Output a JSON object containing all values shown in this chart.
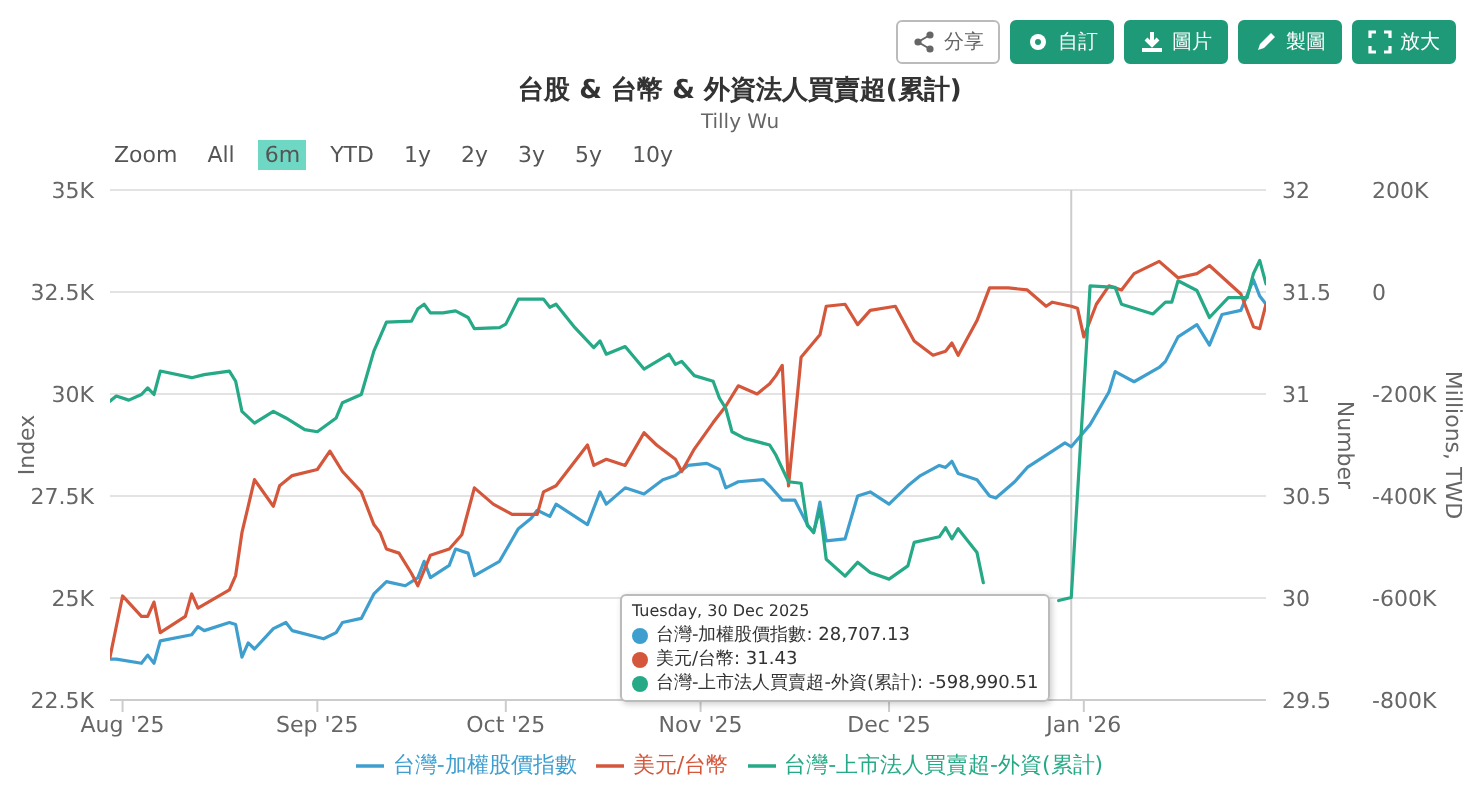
{
  "chart_data": {
    "type": "line",
    "title": "台股 & 台幣 & 外資法人買賣超(累計)",
    "subtitle": "Tilly Wu",
    "ylabel": "Index",
    "y2label": "Number",
    "y3label": "Millions, TWD",
    "annotations": [
      "分享",
      "自訂",
      "圖片",
      "製圖",
      "放大",
      "Zoom",
      "All",
      "6m",
      "YTD",
      "1y",
      "2y",
      "3y",
      "5y",
      "10y",
      "Tuesday, 30 Dec 2025",
      "台灣-加權股價指數: 28,707.13",
      "美元/台幣: 31.43",
      "台灣-上市法人買賣超-外資(累計): -598,990.51"
    ],
    "xlim": [
      "2025-07-30",
      "2026-01-30"
    ],
    "xticks": [
      {
        "value": "2025-08-01",
        "label": "Aug '25"
      },
      {
        "value": "2025-09-01",
        "label": "Sep '25"
      },
      {
        "value": "2025-10-01",
        "label": "Oct '25"
      },
      {
        "value": "2025-11-01",
        "label": "Nov '25"
      },
      {
        "value": "2025-12-01",
        "label": "Dec '25"
      },
      {
        "value": "2026-01-01",
        "label": "Jan '26"
      }
    ],
    "ylim": [
      22500,
      35000
    ],
    "yticks": [
      {
        "value": 22500,
        "label": "22.5K"
      },
      {
        "value": 25000,
        "label": "25K"
      },
      {
        "value": 27500,
        "label": "27.5K"
      },
      {
        "value": 30000,
        "label": "30K"
      },
      {
        "value": 32500,
        "label": "32.5K"
      },
      {
        "value": 35000,
        "label": "35K"
      }
    ],
    "y2lim": [
      29.5,
      32
    ],
    "y2ticks": [
      29.5,
      30,
      30.5,
      31,
      31.5,
      32
    ],
    "y3lim": [
      -800000,
      200000
    ],
    "y3ticks": [
      {
        "value": -800000,
        "label": "-800K"
      },
      {
        "value": -600000,
        "label": "-600K"
      },
      {
        "value": -400000,
        "label": "-400K"
      },
      {
        "value": -200000,
        "label": "-200K"
      },
      {
        "value": 0,
        "label": "0"
      },
      {
        "value": 200000,
        "label": "200K"
      }
    ],
    "ref_lines": [
      {
        "axis": "x",
        "value": "2025-12-30",
        "label": null,
        "color": "#cccccc"
      }
    ],
    "grid": "y",
    "legend": "bottom",
    "marker": "none",
    "series": [
      {
        "name": "台灣-加權股價指數",
        "color": "#3e9fcf",
        "x": [
          "2025-07-30",
          "2025-07-31",
          "2025-08-04",
          "2025-08-05",
          "2025-08-06",
          "2025-08-07",
          "2025-08-12",
          "2025-08-13",
          "2025-08-14",
          "2025-08-18",
          "2025-08-19",
          "2025-08-20",
          "2025-08-21",
          "2025-08-22",
          "2025-08-25",
          "2025-08-27",
          "2025-08-28",
          "2025-09-02",
          "2025-09-04",
          "2025-09-05",
          "2025-09-08",
          "2025-09-10",
          "2025-09-12",
          "2025-09-15",
          "2025-09-17",
          "2025-09-18",
          "2025-09-19",
          "2025-09-22",
          "2025-09-23",
          "2025-09-25",
          "2025-09-26",
          "2025-09-30",
          "2025-10-03",
          "2025-10-05",
          "2025-10-06",
          "2025-10-08",
          "2025-10-09",
          "2025-10-14",
          "2025-10-16",
          "2025-10-17",
          "2025-10-20",
          "2025-10-23",
          "2025-10-26",
          "2025-10-28",
          "2025-10-30",
          "2025-11-02",
          "2025-11-04",
          "2025-11-05",
          "2025-11-07",
          "2025-11-11",
          "2025-11-12",
          "2025-11-14",
          "2025-11-16",
          "2025-11-18",
          "2025-11-19",
          "2025-11-20",
          "2025-11-21",
          "2025-11-24",
          "2025-11-26",
          "2025-11-28",
          "2025-12-01",
          "2025-12-04",
          "2025-12-06",
          "2025-12-09",
          "2025-12-10",
          "2025-12-11",
          "2025-12-12",
          "2025-12-15",
          "2025-12-17",
          "2025-12-18",
          "2025-12-21",
          "2025-12-23",
          "2025-12-27",
          "2025-12-29",
          "2025-12-30",
          "2026-01-02",
          "2026-01-05",
          "2026-01-06",
          "2026-01-09",
          "2026-01-13",
          "2026-01-14",
          "2026-01-16",
          "2026-01-19",
          "2026-01-21",
          "2026-01-23",
          "2026-01-26",
          "2026-01-28",
          "2026-01-29",
          "2026-01-30"
        ],
        "values": [
          23500,
          23500,
          23400,
          23600,
          23400,
          23950,
          24100,
          24300,
          24200,
          24400,
          24350,
          23550,
          23900,
          23750,
          24250,
          24400,
          24200,
          24000,
          24150,
          24400,
          24500,
          25100,
          25400,
          25300,
          25500,
          25900,
          25500,
          25800,
          26200,
          26100,
          25550,
          25900,
          26700,
          26950,
          27150,
          27000,
          27300,
          26800,
          27600,
          27300,
          27700,
          27550,
          27900,
          28000,
          28250,
          28300,
          28150,
          27700,
          27850,
          27900,
          27750,
          27400,
          27400,
          26800,
          26600,
          27350,
          26400,
          26450,
          27500,
          27600,
          27300,
          27750,
          28000,
          28250,
          28200,
          28350,
          28050,
          27900,
          27500,
          27450,
          27850,
          28200,
          28600,
          28800,
          28707.13,
          29250,
          30050,
          30550,
          30300,
          30650,
          30800,
          31400,
          31700,
          31200,
          31950,
          32050,
          32800,
          32400,
          32200
        ]
      },
      {
        "name": "美元/台幣",
        "color": "#d5573b",
        "axis": "y2",
        "x": [
          "2025-07-30",
          "2025-08-01",
          "2025-08-04",
          "2025-08-05",
          "2025-08-06",
          "2025-08-07",
          "2025-08-11",
          "2025-08-12",
          "2025-08-13",
          "2025-08-18",
          "2025-08-19",
          "2025-08-20",
          "2025-08-22",
          "2025-08-25",
          "2025-08-26",
          "2025-08-28",
          "2025-09-01",
          "2025-09-03",
          "2025-09-05",
          "2025-09-08",
          "2025-09-10",
          "2025-09-11",
          "2025-09-12",
          "2025-09-14",
          "2025-09-16",
          "2025-09-17",
          "2025-09-19",
          "2025-09-22",
          "2025-09-24",
          "2025-09-26",
          "2025-09-29",
          "2025-10-02",
          "2025-10-05",
          "2025-10-06",
          "2025-10-07",
          "2025-10-09",
          "2025-10-14",
          "2025-10-15",
          "2025-10-17",
          "2025-10-20",
          "2025-10-23",
          "2025-10-25",
          "2025-10-28",
          "2025-10-29",
          "2025-10-31",
          "2025-11-03",
          "2025-11-05",
          "2025-11-07",
          "2025-11-10",
          "2025-11-12",
          "2025-11-13",
          "2025-11-14",
          "2025-11-15",
          "2025-11-17",
          "2025-11-20",
          "2025-11-21",
          "2025-11-24",
          "2025-11-26",
          "2025-11-28",
          "2025-12-02",
          "2025-12-05",
          "2025-12-08",
          "2025-12-10",
          "2025-12-11",
          "2025-12-12",
          "2025-12-15",
          "2025-12-17",
          "2025-12-20",
          "2025-12-23",
          "2025-12-26",
          "2025-12-27",
          "2025-12-30",
          "2025-12-31",
          "2026-01-01",
          "2026-01-03",
          "2026-01-05",
          "2026-01-07",
          "2026-01-09",
          "2026-01-13",
          "2026-01-16",
          "2026-01-19",
          "2026-01-21",
          "2026-01-26",
          "2026-01-28",
          "2026-01-29",
          "2026-01-30"
        ],
        "values": [
          29.71,
          30.01,
          29.91,
          29.91,
          29.98,
          29.83,
          29.91,
          30.02,
          29.95,
          30.04,
          30.11,
          30.32,
          30.58,
          30.45,
          30.55,
          30.6,
          30.63,
          30.72,
          30.62,
          30.52,
          30.36,
          30.32,
          30.24,
          30.22,
          30.12,
          30.06,
          30.21,
          30.24,
          30.31,
          30.54,
          30.46,
          30.41,
          30.41,
          30.41,
          30.52,
          30.55,
          30.75,
          30.65,
          30.68,
          30.65,
          30.81,
          30.75,
          30.68,
          30.62,
          30.73,
          30.86,
          30.94,
          31.04,
          31.0,
          31.05,
          31.09,
          31.14,
          30.55,
          31.18,
          31.29,
          31.43,
          31.44,
          31.34,
          31.41,
          31.43,
          31.26,
          31.19,
          31.21,
          31.25,
          31.19,
          31.36,
          31.52,
          31.52,
          31.51,
          31.43,
          31.45,
          31.43,
          31.42,
          31.28,
          31.44,
          31.53,
          31.51,
          31.59,
          31.65,
          31.57,
          31.59,
          31.63,
          31.49,
          31.33,
          31.32,
          31.44
        ]
      },
      {
        "name": "台灣-上市法人買賣超-外資(累計)",
        "color": "#26a986",
        "axis": "y3",
        "x": [
          "2025-07-30",
          "2025-07-31",
          "2025-08-02",
          "2025-08-04",
          "2025-08-05",
          "2025-08-06",
          "2025-08-07",
          "2025-08-12",
          "2025-08-14",
          "2025-08-18",
          "2025-08-19",
          "2025-08-20",
          "2025-08-22",
          "2025-08-25",
          "2025-08-27",
          "2025-08-30",
          "2025-09-01",
          "2025-09-04",
          "2025-09-05",
          "2025-09-08",
          "2025-09-10",
          "2025-09-12",
          "2025-09-16",
          "2025-09-17",
          "2025-09-18",
          "2025-09-19",
          "2025-09-21",
          "2025-09-23",
          "2025-09-25",
          "2025-09-26",
          "2025-09-30",
          "2025-10-01",
          "2025-10-03",
          "2025-10-07",
          "2025-10-08",
          "2025-10-09",
          "2025-10-12",
          "2025-10-15",
          "2025-10-16",
          "2025-10-17",
          "2025-10-20",
          "2025-10-23",
          "2025-10-27",
          "2025-10-28",
          "2025-10-29",
          "2025-10-31",
          "2025-11-03",
          "2025-11-04",
          "2025-11-05",
          "2025-11-06",
          "2025-11-08",
          "2025-11-12",
          "2025-11-13",
          "2025-11-15",
          "2025-11-17",
          "2025-11-18",
          "2025-11-19",
          "2025-11-20",
          "2025-11-21",
          "2025-11-24",
          "2025-11-26",
          "2025-11-28",
          "2025-12-01",
          "2025-12-04",
          "2025-12-05",
          "2025-12-09",
          "2025-12-10",
          "2025-12-11",
          "2025-12-12",
          "2025-12-15",
          "2025-12-16",
          "2025-12-20",
          "2025-12-28",
          "2025-12-30",
          "2026-01-02",
          "2026-01-06",
          "2026-01-07",
          "2026-01-12",
          "2026-01-14",
          "2026-01-15",
          "2026-01-16",
          "2026-01-19",
          "2026-01-21",
          "2026-01-24",
          "2026-01-27",
          "2026-01-28",
          "2026-01-29",
          "2026-01-30"
        ],
        "values": [
          -214000,
          -204000,
          -212000,
          -201000,
          -188000,
          -201000,
          -155000,
          -168000,
          -162000,
          -155000,
          -175000,
          -234000,
          -257000,
          -234000,
          -247000,
          -270000,
          -274000,
          -247000,
          -217000,
          -201000,
          -116000,
          -59000,
          -57000,
          -33000,
          -24000,
          -41000,
          -41000,
          -37000,
          -50000,
          -72000,
          -70000,
          -63000,
          -14000,
          -14000,
          -30000,
          -24000,
          -70000,
          -109000,
          -96000,
          -122000,
          -107000,
          -151000,
          -122000,
          -142000,
          -136000,
          -164000,
          -175000,
          -208000,
          -228000,
          -274000,
          -287000,
          -300000,
          -320000,
          -372000,
          -375000,
          -458000,
          -471000,
          -425000,
          -524000,
          -557000,
          -530000,
          -550000,
          -563000,
          -537000,
          -491000,
          -480000,
          -462000,
          -484000,
          -464000,
          -511000,
          -570000,
          null,
          -605000,
          -598990.51,
          12000,
          9000,
          -24000,
          -43000,
          -20000,
          -20000,
          22000,
          3000,
          -50000,
          -11000,
          -11000,
          36000,
          62000,
          16000
        ]
      }
    ]
  }
}
